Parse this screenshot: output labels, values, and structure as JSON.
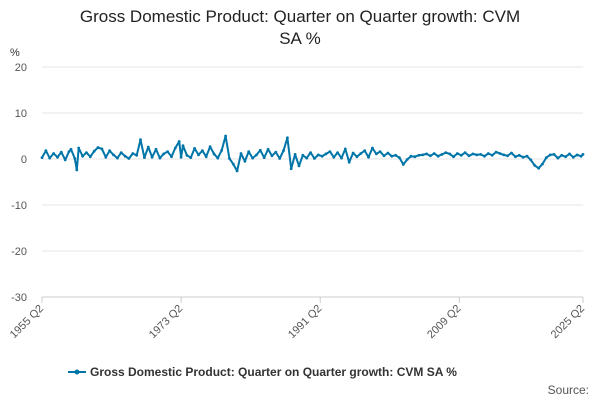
{
  "title_line1": "Gross Domestic Product: Quarter on Quarter growth: CVM",
  "title_line2": "SA %",
  "source_label": "Source:",
  "colors": {
    "series": "#0075a8",
    "grid": "#e6e6e6",
    "axis": "#cccccc"
  },
  "chart_data": {
    "type": "line",
    "title": "Gross Domestic Product: Quarter on Quarter growth: CVM SA %",
    "ylabel": "%",
    "xlabel": "",
    "ylim": [
      -30,
      20
    ],
    "yticks": [
      -30,
      -20,
      -10,
      0,
      10,
      20
    ],
    "xlim": [
      "1955 Q2",
      "2025 Q2"
    ],
    "xticks": [
      "1955 Q2",
      "1973 Q2",
      "1991 Q2",
      "2009 Q2",
      "2025 Q2"
    ],
    "grid": true,
    "legend_position": "bottom",
    "series": [
      {
        "name": "Gross Domestic Product: Quarter on Quarter growth: CVM SA %",
        "points": [
          [
            "1955 Q2",
            0.3
          ],
          [
            "1955 Q4",
            1.8
          ],
          [
            "1956 Q2",
            0.2
          ],
          [
            "1956 Q4",
            1.2
          ],
          [
            "1957 Q2",
            0.4
          ],
          [
            "1957 Q4",
            1.5
          ],
          [
            "1958 Q2",
            -0.2
          ],
          [
            "1958 Q4",
            1.6
          ],
          [
            "1959 Q1",
            2.1
          ],
          [
            "1959 Q3",
            0.1
          ],
          [
            "1959 Q4",
            -2.4
          ],
          [
            "1960 Q1",
            2.4
          ],
          [
            "1960 Q3",
            0.6
          ],
          [
            "1961 Q1",
            1.4
          ],
          [
            "1961 Q3",
            0.5
          ],
          [
            "1962 Q1",
            1.7
          ],
          [
            "1962 Q3",
            2.5
          ],
          [
            "1963 Q1",
            2.2
          ],
          [
            "1963 Q3",
            0.4
          ],
          [
            "1964 Q1",
            1.8
          ],
          [
            "1964 Q3",
            0.9
          ],
          [
            "1965 Q1",
            0.2
          ],
          [
            "1965 Q3",
            1.4
          ],
          [
            "1966 Q1",
            0.6
          ],
          [
            "1966 Q3",
            0.1
          ],
          [
            "1967 Q1",
            1.2
          ],
          [
            "1967 Q3",
            0.8
          ],
          [
            "1968 Q1",
            4.2
          ],
          [
            "1968 Q3",
            0.3
          ],
          [
            "1969 Q1",
            2.6
          ],
          [
            "1969 Q3",
            0.4
          ],
          [
            "1970 Q1",
            2.1
          ],
          [
            "1970 Q3",
            0.2
          ],
          [
            "1971 Q1",
            1.1
          ],
          [
            "1971 Q3",
            1.6
          ],
          [
            "1972 Q1",
            0.5
          ],
          [
            "1972 Q3",
            2.4
          ],
          [
            "1973 Q1",
            3.8
          ],
          [
            "1973 Q2",
            0.4
          ],
          [
            "1973 Q3",
            2.9
          ],
          [
            "1974 Q1",
            0.8
          ],
          [
            "1974 Q3",
            0.3
          ],
          [
            "1975 Q1",
            2.3
          ],
          [
            "1975 Q3",
            0.9
          ],
          [
            "1976 Q1",
            1.8
          ],
          [
            "1976 Q3",
            0.5
          ],
          [
            "1977 Q1",
            2.7
          ],
          [
            "1977 Q3",
            1.1
          ],
          [
            "1978 Q1",
            0.2
          ],
          [
            "1978 Q3",
            1.9
          ],
          [
            "1979 Q1",
            5.0
          ],
          [
            "1979 Q3",
            0.1
          ],
          [
            "1980 Q1",
            -1.1
          ],
          [
            "1980 Q3",
            -2.6
          ],
          [
            "1981 Q1",
            1.2
          ],
          [
            "1981 Q3",
            -0.5
          ],
          [
            "1982 Q1",
            1.6
          ],
          [
            "1982 Q3",
            0.2
          ],
          [
            "1983 Q1",
            0.9
          ],
          [
            "1983 Q3",
            1.9
          ],
          [
            "1984 Q1",
            0.3
          ],
          [
            "1984 Q3",
            2.1
          ],
          [
            "1985 Q1",
            0.7
          ],
          [
            "1985 Q3",
            1.5
          ],
          [
            "1986 Q1",
            0.1
          ],
          [
            "1986 Q3",
            1.8
          ],
          [
            "1987 Q1",
            4.6
          ],
          [
            "1987 Q3",
            -2.1
          ],
          [
            "1988 Q1",
            1.0
          ],
          [
            "1988 Q3",
            -1.5
          ],
          [
            "1989 Q1",
            0.8
          ],
          [
            "1989 Q3",
            0.2
          ],
          [
            "1990 Q1",
            1.4
          ],
          [
            "1990 Q3",
            0.1
          ],
          [
            "1991 Q1",
            0.9
          ],
          [
            "1991 Q3",
            0.6
          ],
          [
            "1992 Q1",
            1.1
          ],
          [
            "1992 Q3",
            1.6
          ],
          [
            "1993 Q1",
            0.4
          ],
          [
            "1993 Q3",
            1.4
          ],
          [
            "1994 Q1",
            0.2
          ],
          [
            "1994 Q3",
            2.2
          ],
          [
            "1995 Q1",
            -0.7
          ],
          [
            "1995 Q3",
            1.3
          ],
          [
            "1996 Q1",
            0.5
          ],
          [
            "1996 Q3",
            1.2
          ],
          [
            "1997 Q1",
            1.8
          ],
          [
            "1997 Q3",
            0.4
          ],
          [
            "1998 Q1",
            2.4
          ],
          [
            "1998 Q3",
            1.1
          ],
          [
            "1999 Q1",
            1.6
          ],
          [
            "1999 Q3",
            0.7
          ],
          [
            "2000 Q1",
            1.3
          ],
          [
            "2000 Q3",
            0.6
          ],
          [
            "2001 Q1",
            0.8
          ],
          [
            "2001 Q3",
            0.3
          ],
          [
            "2002 Q1",
            -1.2
          ],
          [
            "2002 Q3",
            -0.1
          ],
          [
            "2003 Q1",
            0.6
          ],
          [
            "2003 Q3",
            0.5
          ],
          [
            "2004 Q1",
            0.8
          ],
          [
            "2004 Q3",
            0.9
          ],
          [
            "2005 Q1",
            1.1
          ],
          [
            "2005 Q3",
            0.7
          ],
          [
            "2006 Q1",
            1.2
          ],
          [
            "2006 Q3",
            0.6
          ],
          [
            "2007 Q1",
            1.0
          ],
          [
            "2007 Q3",
            1.4
          ],
          [
            "2008 Q1",
            1.1
          ],
          [
            "2008 Q3",
            0.5
          ],
          [
            "2009 Q1",
            1.2
          ],
          [
            "2009 Q3",
            0.8
          ],
          [
            "2010 Q1",
            1.4
          ],
          [
            "2010 Q3",
            0.7
          ],
          [
            "2011 Q1",
            1.1
          ],
          [
            "2011 Q3",
            0.9
          ],
          [
            "2012 Q1",
            1.0
          ],
          [
            "2012 Q3",
            0.6
          ],
          [
            "2013 Q1",
            1.2
          ],
          [
            "2013 Q3",
            0.8
          ],
          [
            "2014 Q1",
            1.5
          ],
          [
            "2014 Q3",
            1.2
          ],
          [
            "2015 Q1",
            0.9
          ],
          [
            "2015 Q3",
            0.7
          ],
          [
            "2016 Q1",
            1.3
          ],
          [
            "2016 Q3",
            0.5
          ],
          [
            "2017 Q1",
            0.8
          ],
          [
            "2017 Q3",
            0.4
          ],
          [
            "2018 Q1",
            0.6
          ],
          [
            "2018 Q3",
            -0.2
          ],
          [
            "2019 Q1",
            -1.4
          ],
          [
            "2019 Q3",
            -2.0
          ],
          [
            "2020 Q1",
            -1.1
          ],
          [
            "2020 Q3",
            0.3
          ],
          [
            "2021 Q1",
            0.9
          ],
          [
            "2021 Q3",
            1.0
          ],
          [
            "2022 Q1",
            0.2
          ],
          [
            "2022 Q3",
            0.8
          ],
          [
            "2023 Q1",
            0.5
          ],
          [
            "2023 Q3",
            1.1
          ],
          [
            "2024 Q1",
            0.4
          ],
          [
            "2024 Q3",
            0.9
          ],
          [
            "2025 Q1",
            0.6
          ],
          [
            "2025 Q2",
            1.0
          ]
        ]
      }
    ]
  }
}
